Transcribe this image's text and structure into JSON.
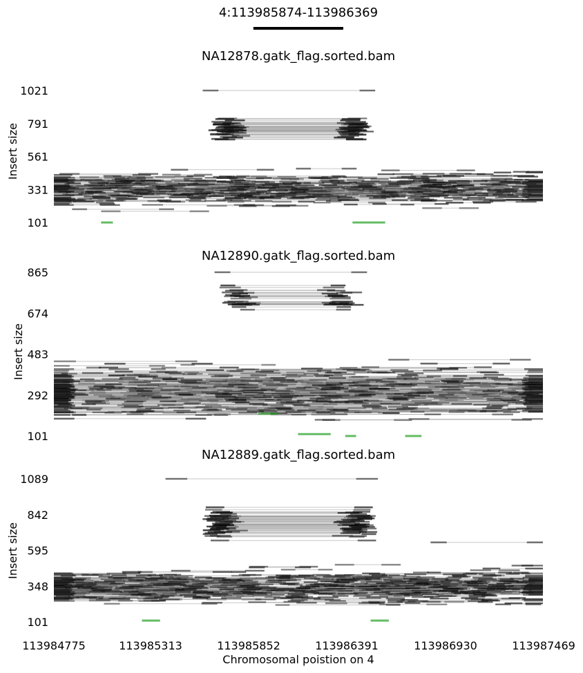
{
  "chart_data": {
    "type": "scatter",
    "description_kind": "samplot-style paired-read insert size plot",
    "title": "4:113985874-113986369",
    "highlighted_region": {
      "start": 113985874,
      "end": 113986369
    },
    "xlabel": "Chromosomal poistion on 4",
    "x_ticks": [
      113984775,
      113985313,
      113985852,
      113986391,
      113986930,
      113987469
    ],
    "x_tick_labels": [
      "113984775",
      "113985313",
      "113985852",
      "113986391",
      "113986930",
      "113987469"
    ],
    "xlim": [
      113984775,
      113987469
    ],
    "read_colors": {
      "discordant_pair": "#000000",
      "concordant_pair": "#22a022"
    },
    "panels": [
      {
        "title": "NA12878.gatk_flag.sorted.bam",
        "ylabel": "Insert size",
        "ylim": [
          101,
          1021
        ],
        "y_ticks": [
          101,
          331,
          561,
          791,
          1021
        ],
        "y_tick_labels": [
          "101",
          "331",
          "561",
          "791",
          "1021"
        ],
        "groups": [
          {
            "kind": "split",
            "count": 45,
            "center": 755,
            "spread": 70,
            "span_left": [
              113985577,
              113985916
            ],
            "span_right": [
              113986230,
              113986581
            ],
            "x_left": 113985680,
            "x_right": 113986470,
            "jitter": 55
          },
          {
            "kind": "block",
            "count": 230,
            "center": 330,
            "spread": 95,
            "x_start": 113984775,
            "x_end": 113986100
          },
          {
            "kind": "block",
            "count": 200,
            "center": 335,
            "spread": 95,
            "x_start": 113986230,
            "x_end": 113987469
          },
          {
            "kind": "pair",
            "y": 1021,
            "x": [
              113985595,
              113986545
            ]
          },
          {
            "kind": "green",
            "y": 101,
            "x": [
              113985035,
              113985100
            ]
          },
          {
            "kind": "green",
            "y": 101,
            "x": [
              113986420,
              113986600
            ]
          }
        ]
      },
      {
        "title": "NA12890.gatk_flag.sorted.bam",
        "ylabel": "Insert size",
        "ylim": [
          101,
          865
        ],
        "y_ticks": [
          101,
          292,
          483,
          674,
          865
        ],
        "y_tick_labels": [
          "101",
          "292",
          "483",
          "674",
          "865"
        ],
        "groups": [
          {
            "kind": "split",
            "count": 25,
            "center": 745,
            "spread": 70,
            "span_left": [
              113985652,
              113985926
            ],
            "span_right": [
              113986160,
              113986520
            ],
            "x_left": 113985760,
            "x_right": 113986400,
            "jitter": 60
          },
          {
            "kind": "block",
            "count": 520,
            "center": 305,
            "spread": 95,
            "x_start": 113984775,
            "x_end": 113987469
          },
          {
            "kind": "pair",
            "y": 865,
            "x": [
              113985660,
              113986500
            ]
          },
          {
            "kind": "green",
            "y": 110,
            "x": [
              113986120,
              113986300
            ]
          },
          {
            "kind": "green",
            "y": 205,
            "x": [
              113985900,
              113986010
            ]
          },
          {
            "kind": "green",
            "y": 101,
            "x": [
              113986380,
              113986440
            ]
          },
          {
            "kind": "green",
            "y": 101,
            "x": [
              113986710,
              113986800
            ]
          }
        ]
      },
      {
        "title": "NA12889.gatk_flag.sorted.bam",
        "ylabel": "Insert size",
        "ylim": [
          101,
          1089
        ],
        "y_ticks": [
          101,
          348,
          595,
          842,
          1089
        ],
        "y_tick_labels": [
          "101",
          "348",
          "595",
          "842",
          "1089"
        ],
        "groups": [
          {
            "kind": "split",
            "count": 55,
            "center": 775,
            "spread": 110,
            "span_left": [
              113985520,
              113985915
            ],
            "span_right": [
              113986235,
              113986610
            ],
            "x_left": 113985660,
            "x_right": 113986480,
            "jitter": 60
          },
          {
            "kind": "block",
            "count": 260,
            "center": 340,
            "spread": 95,
            "x_start": 113984775,
            "x_end": 113986230
          },
          {
            "kind": "block",
            "count": 220,
            "center": 340,
            "spread": 95,
            "x_start": 113986150,
            "x_end": 113987469
          },
          {
            "kind": "pair",
            "y": 1089,
            "x": [
              113985390,
              113986560
            ]
          },
          {
            "kind": "pair",
            "y": 650,
            "x": [
              113986850,
              113987469
            ]
          },
          {
            "kind": "green",
            "y": 110,
            "x": [
              113985260,
              113985360
            ]
          },
          {
            "kind": "green",
            "y": 110,
            "x": [
              113986520,
              113986620
            ]
          }
        ]
      }
    ]
  }
}
